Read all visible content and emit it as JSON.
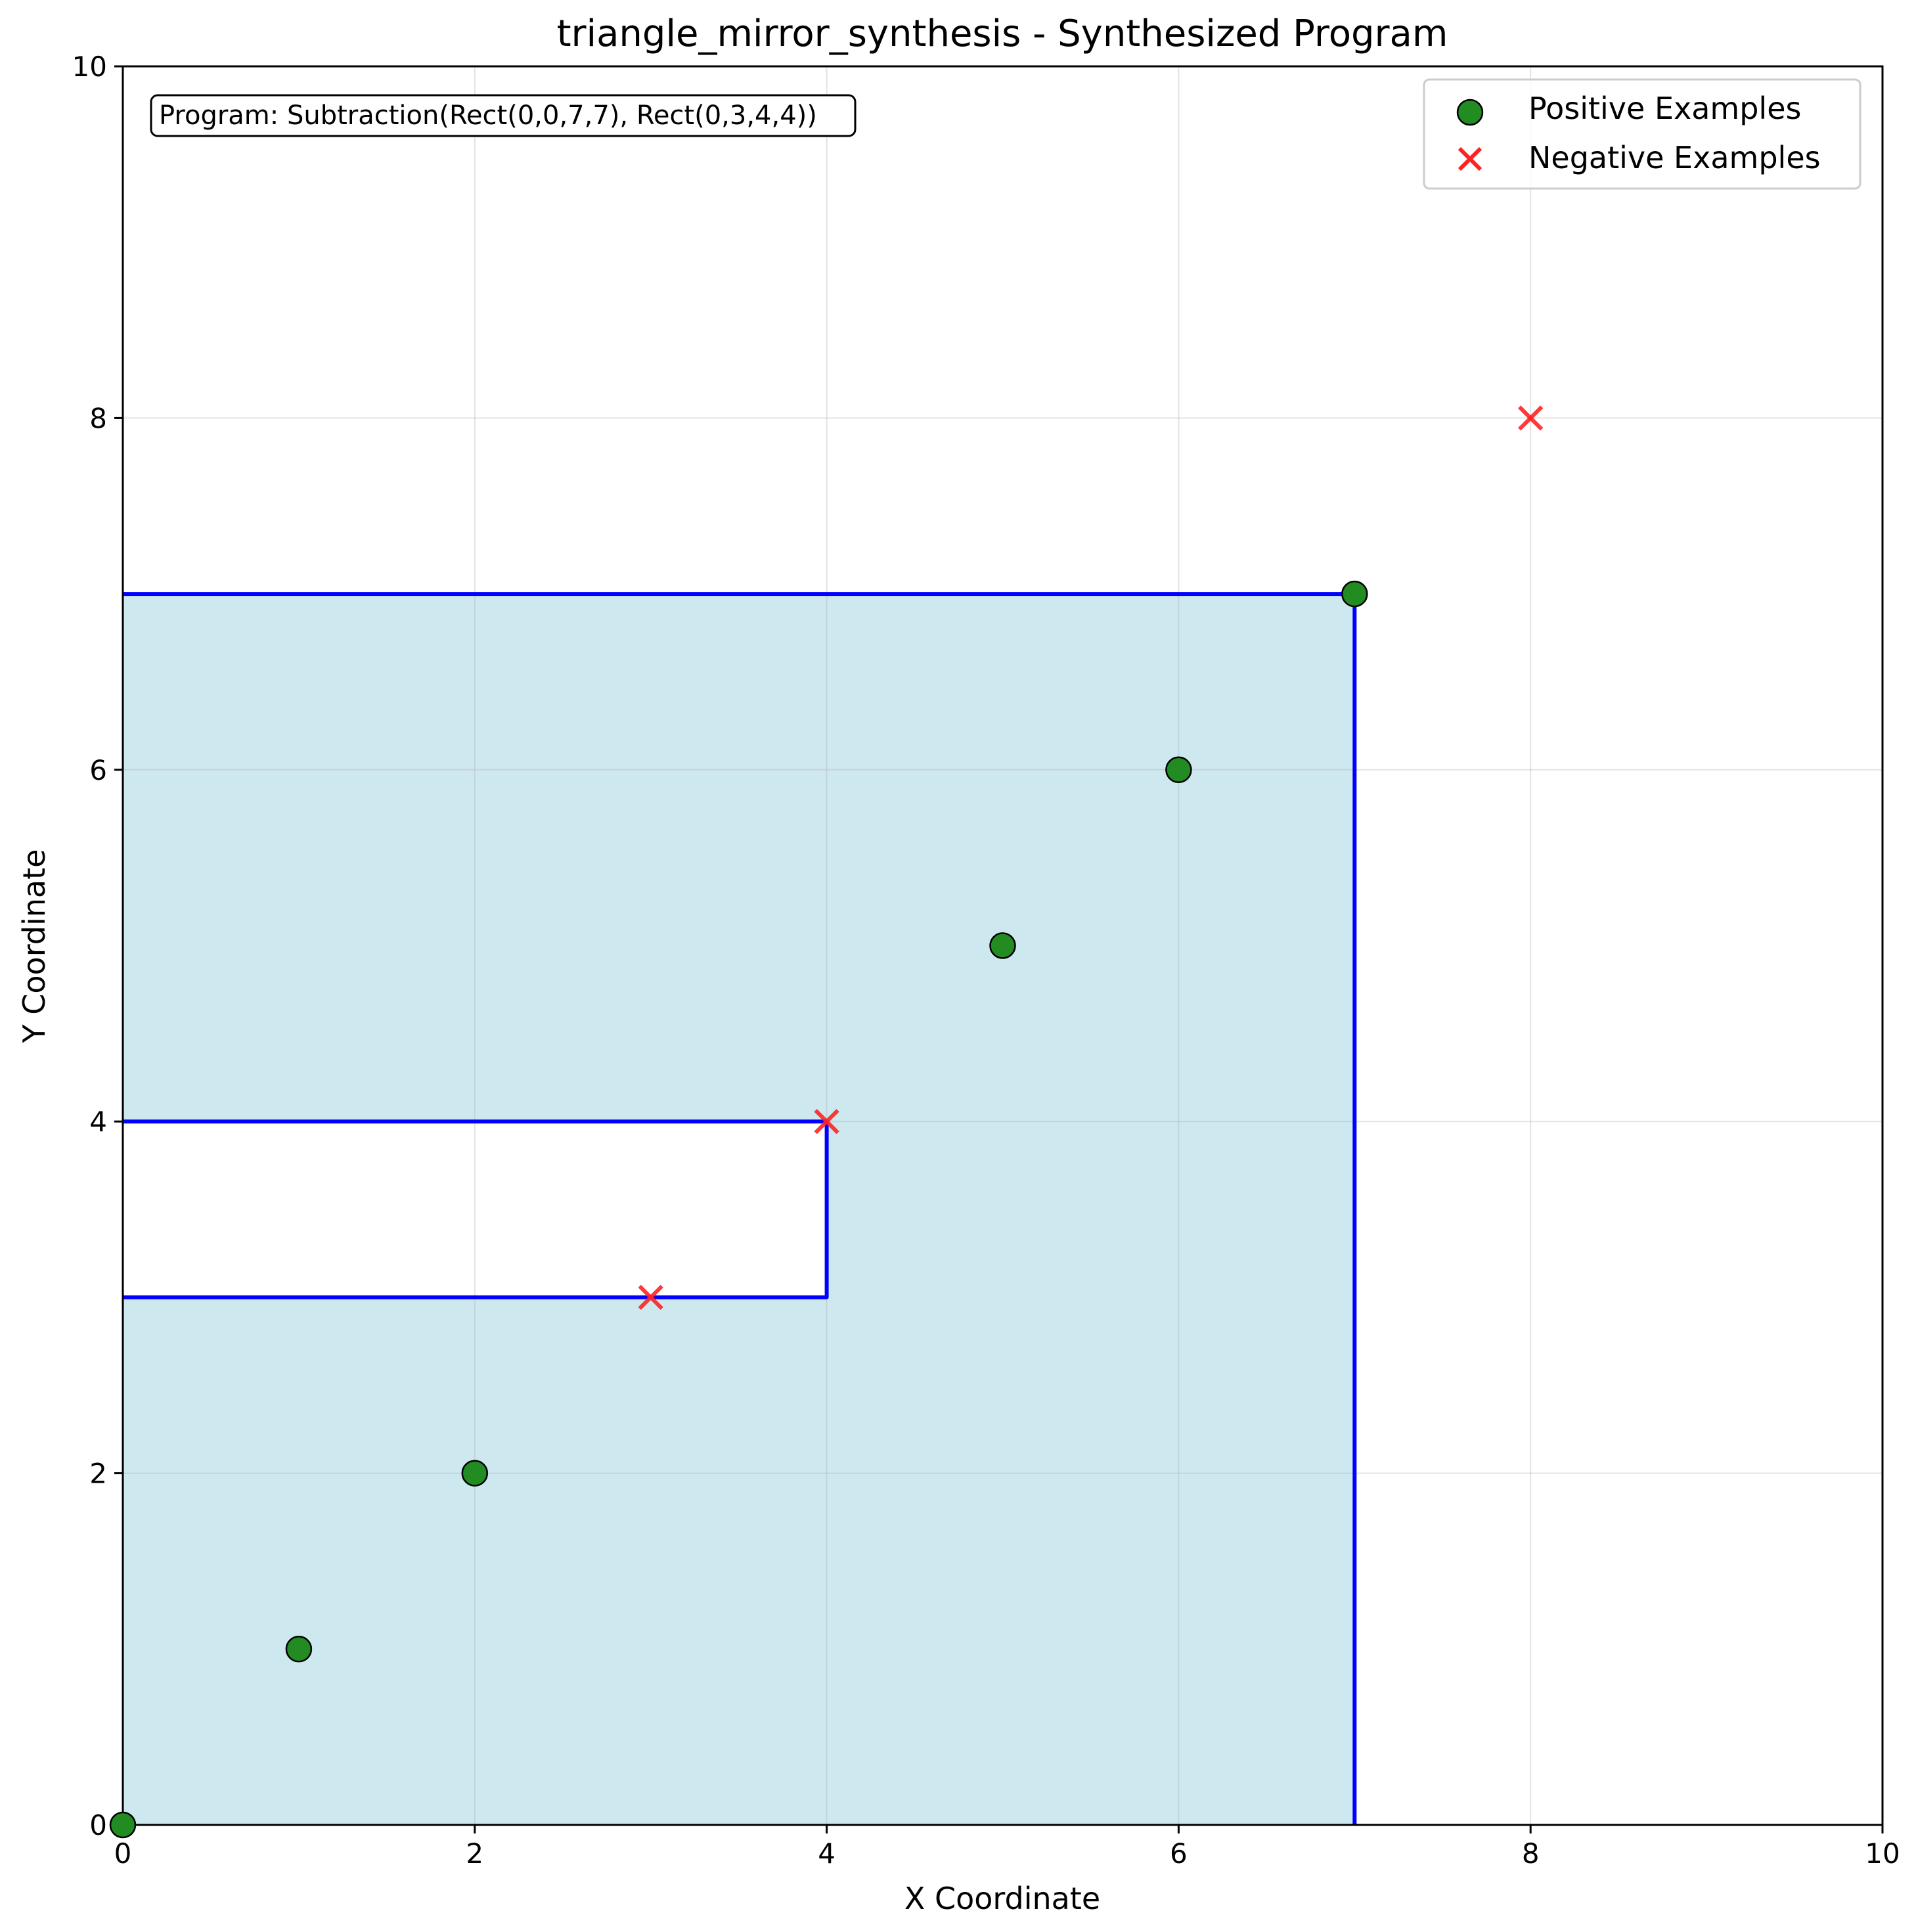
{
  "chart_data": {
    "type": "scatter",
    "title": "triangle_mirror_synthesis - Synthesized Program",
    "xlabel": "X Coordinate",
    "ylabel": "Y Coordinate",
    "xlim": [
      0,
      10
    ],
    "ylim": [
      0,
      10
    ],
    "x_ticks": [
      "0",
      "2",
      "4",
      "6",
      "8",
      "10"
    ],
    "y_ticks": [
      "0",
      "2",
      "4",
      "6",
      "8",
      "10"
    ],
    "grid": true,
    "legend_position": "top-right",
    "annotation": "Program: Subtraction(Rect(0,0,7,7), Rect(0,3,4,4))",
    "region": {
      "outer_rect": [
        0,
        0,
        7,
        7
      ],
      "subtracted_rect": [
        0,
        3,
        4,
        4
      ],
      "fill_color": "#add8e6",
      "edge_color": "#0000ff"
    },
    "series": [
      {
        "name": "Positive Examples",
        "marker": "circle",
        "color": "#228b22",
        "points": [
          [
            0,
            0
          ],
          [
            1,
            1
          ],
          [
            2,
            2
          ],
          [
            5,
            5
          ],
          [
            6,
            6
          ],
          [
            7,
            7
          ]
        ]
      },
      {
        "name": "Negative Examples",
        "marker": "x",
        "color": "#ff2222",
        "points": [
          [
            3,
            3
          ],
          [
            4,
            4
          ],
          [
            8,
            8
          ]
        ]
      }
    ]
  }
}
